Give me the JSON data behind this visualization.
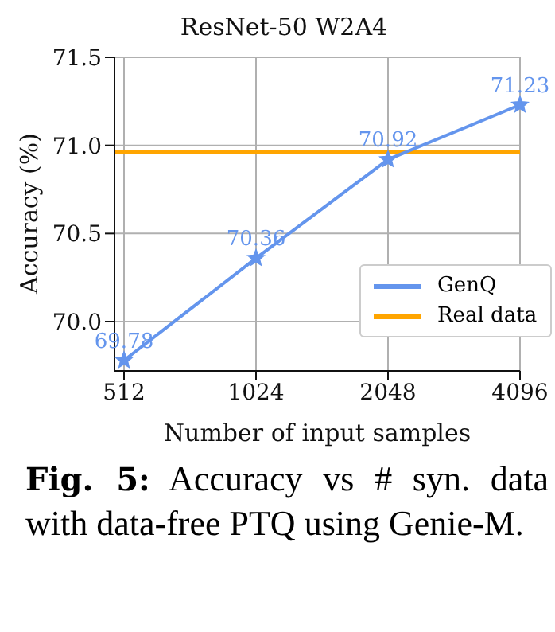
{
  "chart_data": {
    "type": "line",
    "title": "ResNet-50 W2A4",
    "xlabel": "Number of input samples",
    "ylabel": "Accuracy (%)",
    "categories": [
      "512",
      "1024",
      "2048",
      "4096"
    ],
    "series": [
      {
        "name": "GenQ",
        "color": "#6495ed",
        "values": [
          69.78,
          70.36,
          70.92,
          71.23
        ]
      }
    ],
    "ref_lines": [
      {
        "axis": "y",
        "value": 70.96,
        "label": "Real data",
        "color": "#ffa500"
      }
    ],
    "ylim": [
      69.72,
      71.5
    ],
    "yticks": [
      {
        "value": 70.0,
        "label": "70.0"
      },
      {
        "value": 70.5,
        "label": "70.5"
      },
      {
        "value": 71.0,
        "label": "71.0"
      },
      {
        "value": 71.5,
        "label": "71.5"
      }
    ],
    "grid": true,
    "legend": "bottom right",
    "marker": "star",
    "line_style": "solid",
    "data_labels": true,
    "annotations": [
      "Fig. 5: Accuracy vs # syn. data with data-free PTQ using Genie-M."
    ]
  }
}
